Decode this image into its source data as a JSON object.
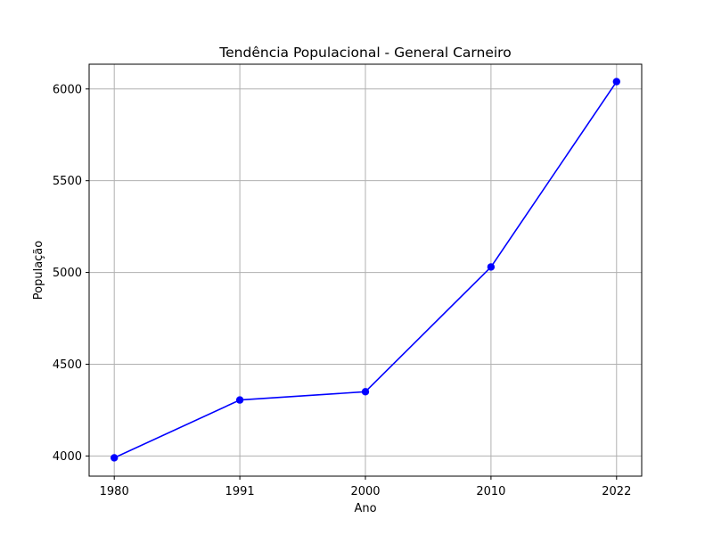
{
  "chart_data": {
    "type": "line",
    "title": "Tendência Populacional - General Carneiro",
    "xlabel": "Ano",
    "ylabel": "População",
    "x": [
      "1980",
      "1991",
      "2000",
      "2010",
      "2022"
    ],
    "series": [
      {
        "values": [
          3990,
          4305,
          4350,
          5030,
          6040
        ],
        "color": "#0000ff",
        "marker": "circle"
      }
    ],
    "yticks": [
      4000,
      4500,
      5000,
      5500,
      6000
    ],
    "ylim": [
      3890,
      6135
    ],
    "x_spacing": "categorical",
    "grid": true
  }
}
